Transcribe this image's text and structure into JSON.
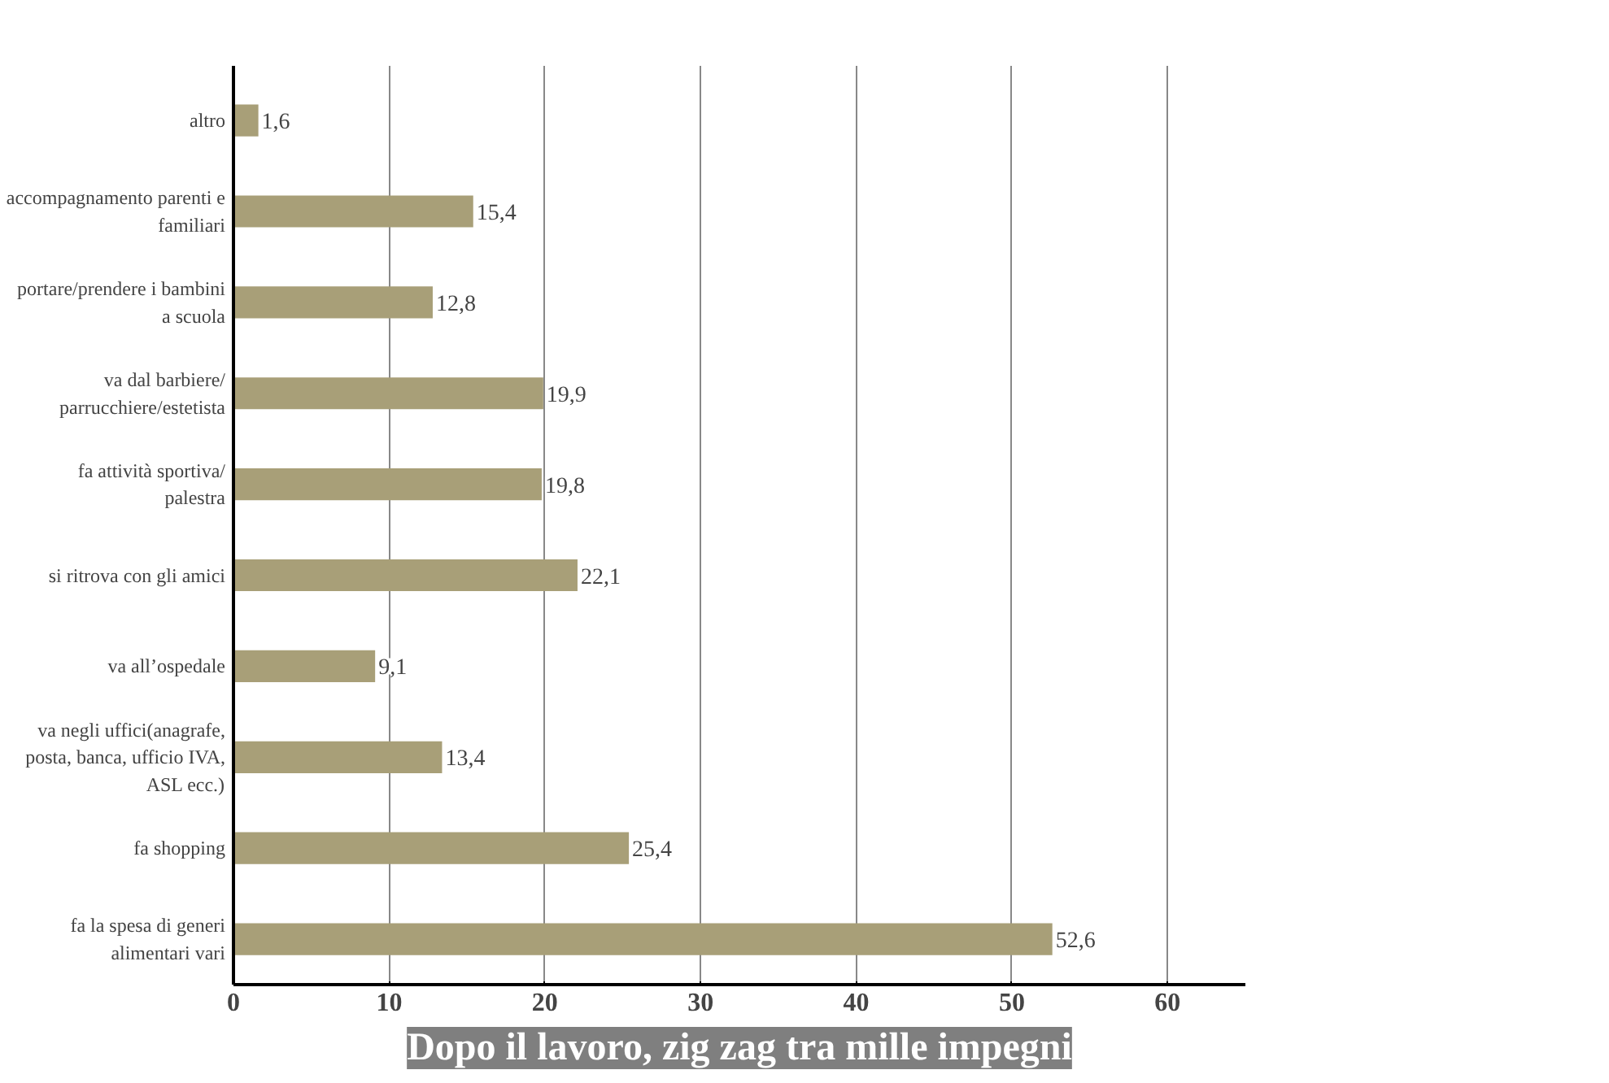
{
  "chart_data": {
    "type": "bar",
    "orientation": "horizontal",
    "title": "Dopo il lavoro, zig zag tra mille impegni",
    "categories": [
      "altro",
      "accompagnamento parenti e familiari",
      "portare/prendere i bambini a scuola",
      "va dal barbiere/ parrucchiere/estetista",
      "fa attività sportiva/ palestra",
      "si ritrova con gli amici",
      "va all’ospedale",
      "va negli uffici(anagrafe, posta, banca, ufficio IVA, ASL ecc.)",
      "fa shopping",
      "fa la spesa di generi alimentari vari"
    ],
    "values": [
      1.6,
      15.4,
      12.8,
      19.9,
      19.8,
      22.1,
      9.1,
      13.4,
      25.4,
      52.6
    ],
    "value_labels": [
      "1,6",
      "15,4",
      "12,8",
      "19,9",
      "19,8",
      "22,1",
      "9,1",
      "13,4",
      "25,4",
      "52,6"
    ],
    "color": "#a89f78",
    "xlim": [
      0,
      65
    ],
    "xticks": [
      0,
      10,
      20,
      30,
      40,
      50,
      60
    ],
    "grid": "x"
  }
}
